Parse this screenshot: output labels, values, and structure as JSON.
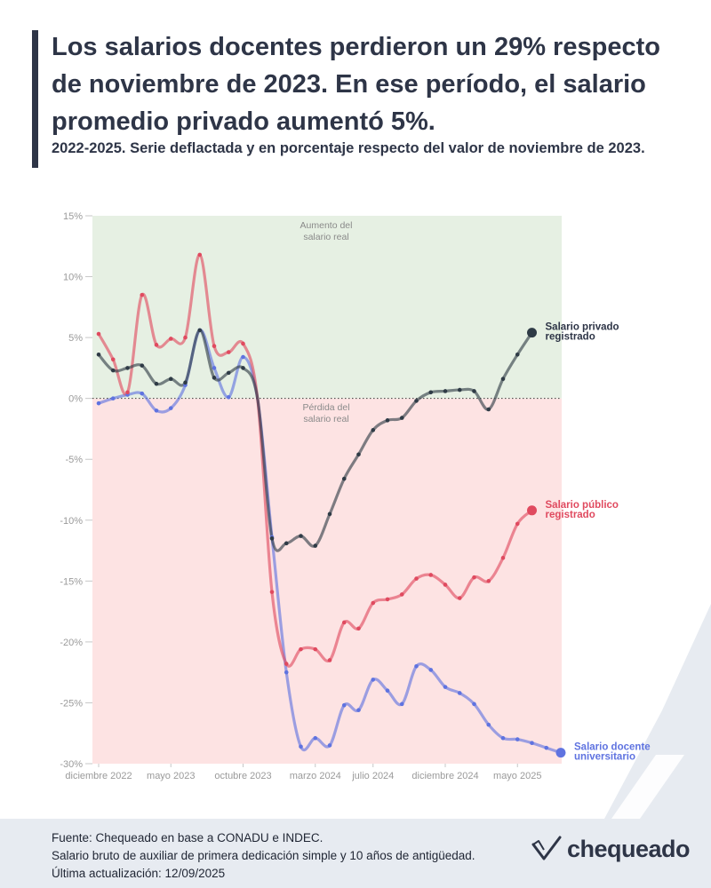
{
  "header": {
    "title": "Los salarios docentes perdieron un 29% respecto de noviembre de 2023. En ese período, el salario promedio privado aumentó 5%.",
    "subtitle": "2022-2025. Serie deflactada y en porcentaje respecto del valor de noviembre de 2023."
  },
  "footer": {
    "source": "Fuente: Chequeado en base a CONADU e INDEC.",
    "note": "Salario bruto de auxiliar de primera dedicación simple y 10 años de antigüedad.",
    "updated": "Última actualización: 12/09/2025",
    "logo": "chequeado"
  },
  "colors": {
    "positive_area": "#e6f0e3",
    "negative_area": "#fde3e3",
    "privado": "#2f3b46",
    "publico": "#e04a5f",
    "docente": "#5f73e0"
  },
  "chart_data": {
    "type": "line",
    "title": "Los salarios docentes perdieron un 29% respecto de noviembre de 2023. En ese período, el salario promedio privado aumentó 5%.",
    "xlabel": "",
    "ylabel": "",
    "ylim": [
      -30,
      15
    ],
    "yticks": [
      15,
      10,
      5,
      0,
      -5,
      -10,
      -15,
      -20,
      -25,
      -30
    ],
    "ytick_labels": [
      "15%",
      "10%",
      "5%",
      "0%",
      "-5%",
      "-10%",
      "-15%",
      "-20%",
      "-25%",
      "-30%"
    ],
    "x_range": [
      0,
      32
    ],
    "xticks": [
      {
        "x": 0,
        "label": "diciembre 2022"
      },
      {
        "x": 5,
        "label": "mayo 2023"
      },
      {
        "x": 10,
        "label": "octubre 2023"
      },
      {
        "x": 15,
        "label": "marzo 2024"
      },
      {
        "x": 19,
        "label": "julio 2024"
      },
      {
        "x": 24,
        "label": "diciembre 2024"
      },
      {
        "x": 29,
        "label": "mayo 2025"
      }
    ],
    "annotations": {
      "gain": "Aumento del salario real",
      "loss": "Pérdida del salario real"
    },
    "series": [
      {
        "name": "Salario privado registrado",
        "color": "#2f3b46",
        "x": [
          0,
          1,
          2,
          3,
          4,
          5,
          6,
          7,
          8,
          9,
          10,
          11,
          12,
          13,
          14,
          15,
          16,
          17,
          18,
          19,
          20,
          21,
          22,
          23,
          24,
          25,
          26,
          27,
          28,
          29,
          30
        ],
        "values": [
          3.6,
          2.3,
          2.5,
          2.7,
          1.2,
          1.6,
          1.3,
          5.6,
          1.7,
          2.1,
          2.5,
          0,
          -11.5,
          -11.9,
          -11.3,
          -12.1,
          -9.5,
          -6.6,
          -4.6,
          -2.6,
          -1.8,
          -1.6,
          -0.2,
          0.5,
          0.6,
          0.7,
          0.6,
          -0.9,
          1.6,
          3.6,
          5.4
        ]
      },
      {
        "name": "Salario público registrado",
        "color": "#e04a5f",
        "x": [
          0,
          1,
          2,
          3,
          4,
          5,
          6,
          7,
          8,
          9,
          10,
          11,
          12,
          13,
          14,
          15,
          16,
          17,
          18,
          19,
          20,
          21,
          22,
          23,
          24,
          25,
          26,
          27,
          28,
          29,
          30
        ],
        "values": [
          5.3,
          3.2,
          0.5,
          8.5,
          4.4,
          4.9,
          5,
          11.8,
          4.3,
          3.8,
          4.5,
          0,
          -15.9,
          -21.8,
          -20.6,
          -20.6,
          -21.5,
          -18.4,
          -18.9,
          -16.8,
          -16.5,
          -16.1,
          -14.8,
          -14.5,
          -15.3,
          -16.4,
          -14.7,
          -15,
          -13.1,
          -10.3,
          -9.2
        ]
      },
      {
        "name": "Salario docente universitario",
        "color": "#5f73e0",
        "x": [
          0,
          1,
          2,
          3,
          4,
          5,
          6,
          7,
          8,
          9,
          10,
          11,
          12,
          13,
          14,
          15,
          16,
          17,
          18,
          19,
          20,
          21,
          22,
          23,
          24,
          25,
          26,
          27,
          28,
          29,
          30,
          31,
          32
        ],
        "values": [
          -0.4,
          0,
          0.3,
          0.4,
          -1,
          -0.8,
          1.1,
          5.6,
          2.5,
          0.1,
          3.4,
          0,
          -11.4,
          -22.5,
          -28.6,
          -27.9,
          -28.5,
          -25.2,
          -25.6,
          -23.1,
          -24,
          -25.1,
          -22,
          -22.3,
          -23.7,
          -24.2,
          -25.1,
          -26.8,
          -27.9,
          -28,
          -28.3,
          -28.7,
          -29.1
        ]
      }
    ],
    "legend": [
      {
        "label_line1": "Salario privado",
        "label_line2": "registrado"
      },
      {
        "label_line1": "Salario público",
        "label_line2": "registrado"
      },
      {
        "label_line1": "Salario docente",
        "label_line2": "universitario"
      }
    ]
  }
}
